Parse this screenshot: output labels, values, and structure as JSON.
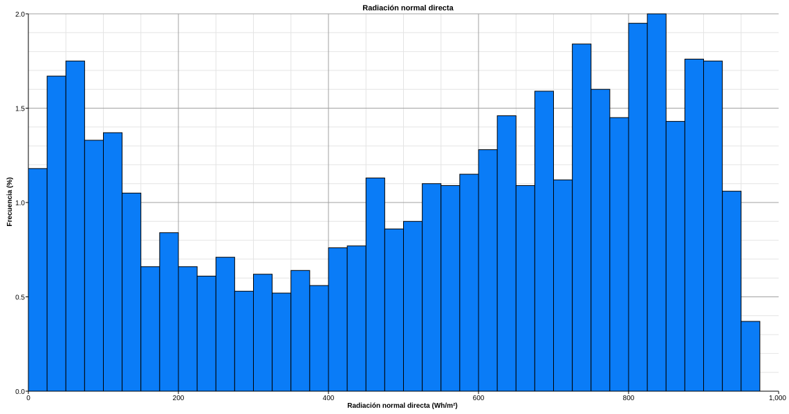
{
  "chart_data": {
    "type": "bar",
    "title": "Radiación normal directa",
    "xlabel": "Radiación normal directa (Wh/m²)",
    "ylabel": "Frecuencia (%)",
    "xlim": [
      0,
      1000
    ],
    "ylim": [
      0,
      2.0
    ],
    "bin_width": 25,
    "bin_starts": [
      0,
      25,
      50,
      75,
      100,
      125,
      150,
      175,
      200,
      225,
      250,
      275,
      300,
      325,
      350,
      375,
      400,
      425,
      450,
      475,
      500,
      525,
      550,
      575,
      600,
      625,
      650,
      675,
      700,
      725,
      750,
      775,
      800,
      825,
      850,
      875,
      900,
      925,
      950
    ],
    "values": [
      1.18,
      1.67,
      1.75,
      1.33,
      1.37,
      1.05,
      0.66,
      0.84,
      0.66,
      0.61,
      0.71,
      0.53,
      0.62,
      0.52,
      0.64,
      0.56,
      0.76,
      0.77,
      1.13,
      0.86,
      0.9,
      1.1,
      1.09,
      1.15,
      1.28,
      1.46,
      1.09,
      1.59,
      1.12,
      1.84,
      1.6,
      1.45,
      1.95,
      2.0,
      1.43,
      1.76,
      1.75,
      1.06,
      0.37
    ],
    "x_ticks": [
      0,
      200,
      400,
      600,
      800,
      1000
    ],
    "x_tick_labels": [
      "0",
      "200",
      "400",
      "600",
      "800",
      "1,000"
    ],
    "y_ticks": [
      0,
      0.5,
      1.0,
      1.5,
      2.0
    ],
    "y_tick_labels": [
      "0.0",
      "0.5",
      "1.0",
      "1.5",
      "2.0"
    ],
    "grid": true,
    "bar_color": "#0A7CF7",
    "bar_edge_color": "#000000",
    "major_grid_color": "#A0A0A0",
    "minor_grid_color": "#E4E4E4"
  }
}
